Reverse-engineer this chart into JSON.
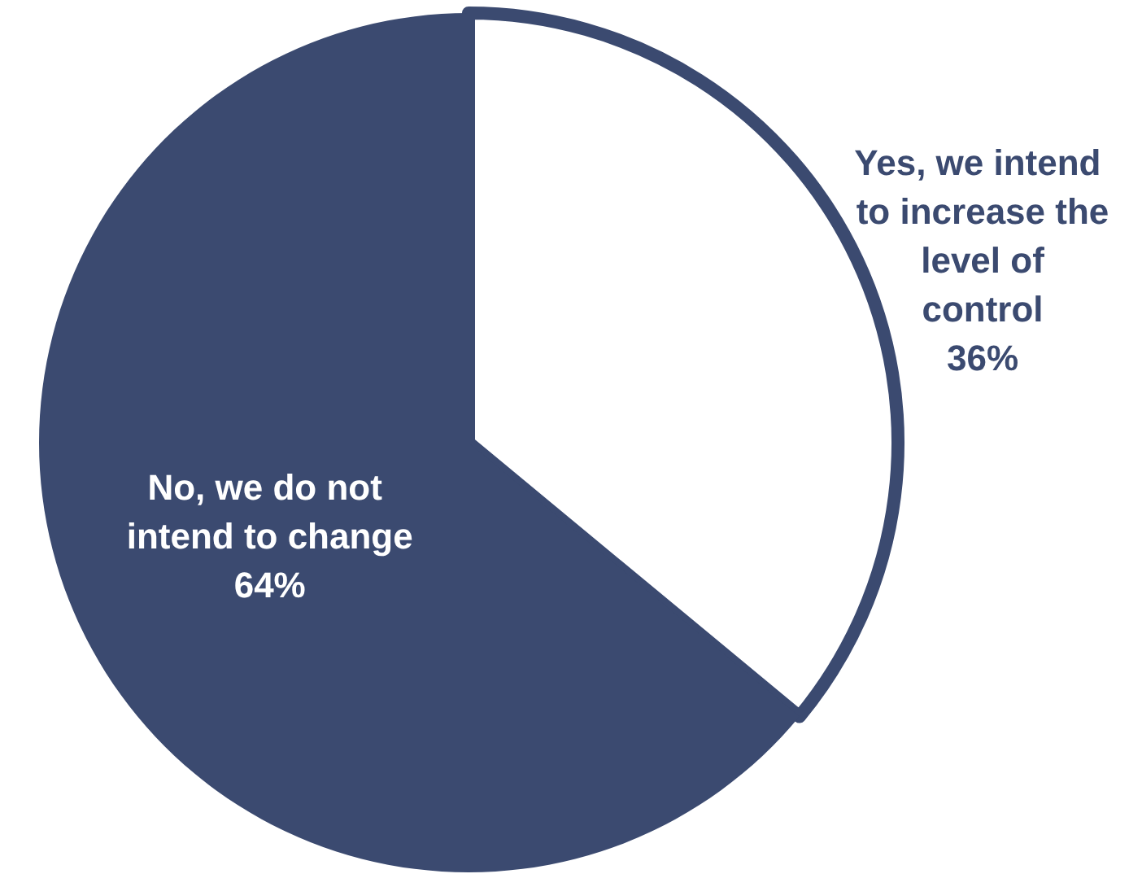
{
  "chart_data": {
    "type": "pie",
    "categories": [
      "Yes, we intend to increase the level of control",
      "No, we do not intend to change"
    ],
    "values": [
      36,
      64
    ],
    "colors": [
      "#ffffff",
      "#3b4a70"
    ],
    "value_labels": [
      "36%",
      "64%"
    ],
    "legend": false
  }
}
